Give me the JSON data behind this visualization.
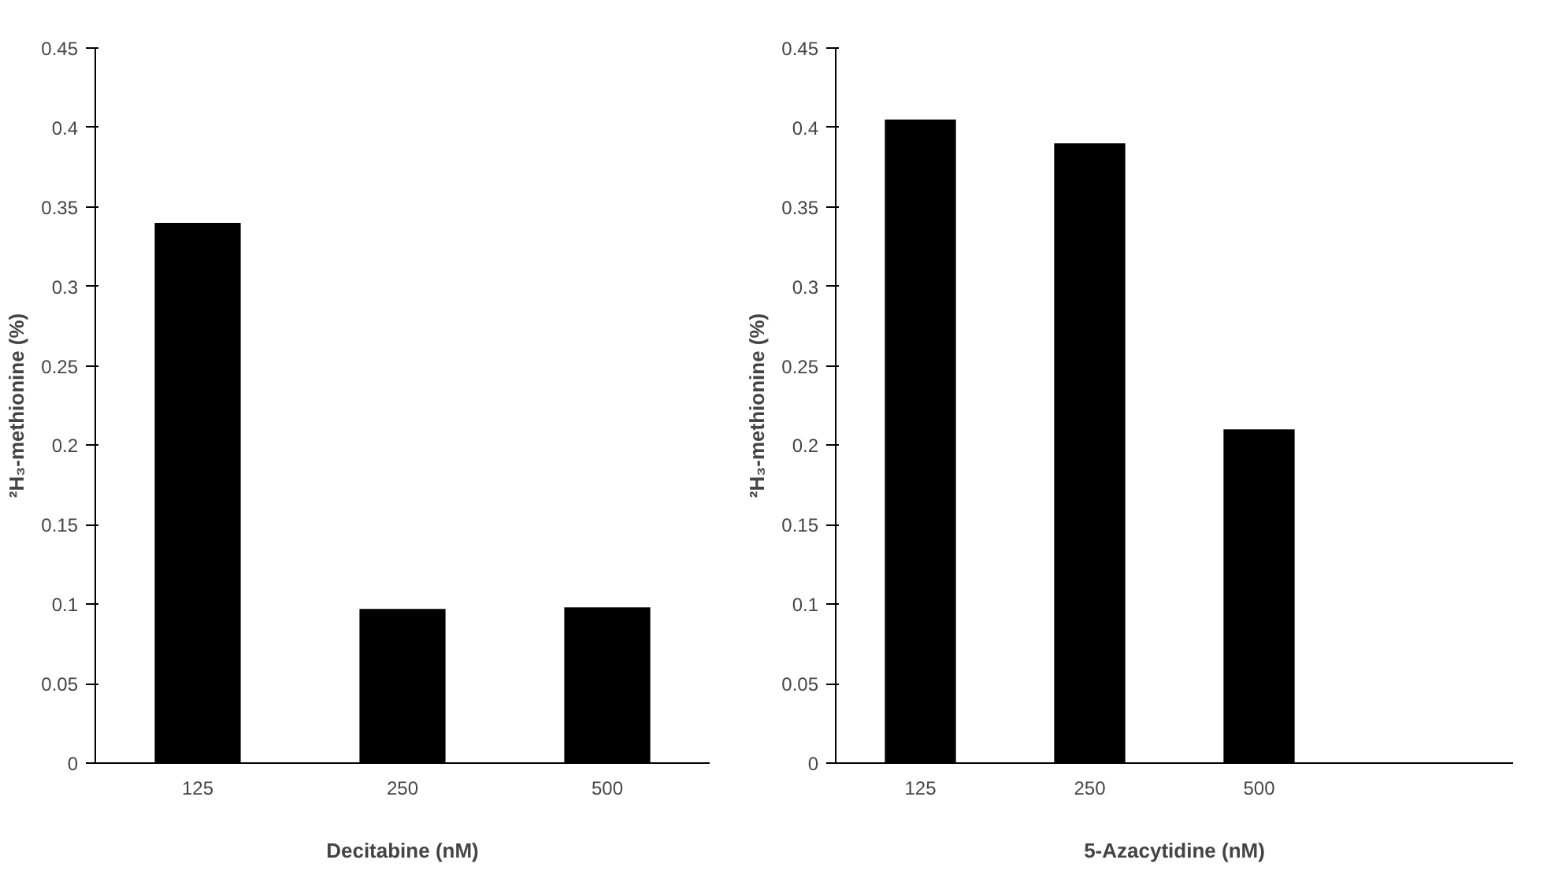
{
  "chart_data": [
    {
      "type": "bar",
      "xlabel": "Decitabine (nM)",
      "ylabel": "²H₃-methionine (%)",
      "categories": [
        "125",
        "250",
        "500"
      ],
      "values": [
        0.34,
        0.097,
        0.098
      ],
      "color": "#000000",
      "ylim": [
        0,
        0.45
      ],
      "yticks": [
        0,
        0.05,
        0.1,
        0.15,
        0.2,
        0.25,
        0.3,
        0.35,
        0.4,
        0.45
      ],
      "grid": false
    },
    {
      "type": "bar",
      "xlabel": "5-Azacytidine (nM)",
      "ylabel": "²H₃-methionine (%)",
      "categories": [
        "125",
        "250",
        "500",
        null
      ],
      "values": [
        0.405,
        0.39,
        0.21,
        null
      ],
      "color": "#000000",
      "ylim": [
        0,
        0.45
      ],
      "yticks": [
        0,
        0.05,
        0.1,
        0.15,
        0.2,
        0.25,
        0.3,
        0.35,
        0.4,
        0.45
      ],
      "grid": false
    }
  ]
}
